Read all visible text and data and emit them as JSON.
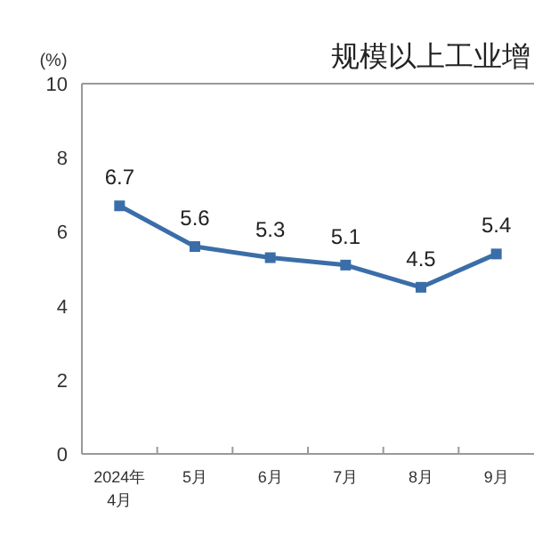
{
  "chart_data": {
    "type": "line",
    "title": "规模以上工业增",
    "ylabel": "(%)",
    "categories": [
      "2024年\n4月",
      "5月",
      "6月",
      "7月",
      "8月",
      "9月"
    ],
    "series": [
      {
        "color": "#3a6ea8",
        "values": [
          6.7,
          5.6,
          5.3,
          5.1,
          4.5,
          5.4
        ]
      }
    ],
    "ylim": [
      0,
      10
    ],
    "yticks": [
      0,
      2,
      4,
      6,
      8,
      10
    ],
    "data_labels": true,
    "marker": "square",
    "grid": false
  }
}
